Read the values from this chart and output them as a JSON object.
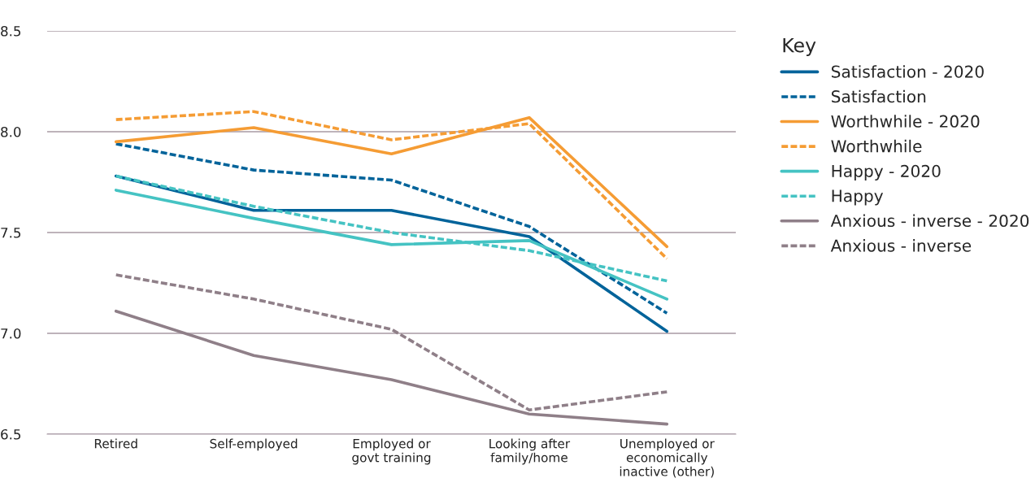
{
  "chart_data": {
    "type": "line",
    "legend_title": "Key",
    "legend": "right",
    "grid": "y",
    "categories": [
      "Retired",
      "Self-employed",
      "Employed or\ngovt training",
      "Looking after\nfamily/home",
      "Unemployed or\neconomically\ninactive (other)"
    ],
    "ylim": [
      6.5,
      8.5
    ],
    "yticks": [
      {
        "value": 6.5,
        "label": "6.5"
      },
      {
        "value": 7.0,
        "label": "7.0"
      },
      {
        "value": 7.5,
        "label": "7.5"
      },
      {
        "value": 8.0,
        "label": "8.0"
      },
      {
        "value": 8.5,
        "label": "8.5"
      }
    ],
    "series": [
      {
        "name": "Satisfaction - 2020",
        "color": "#00639a",
        "line_style": "solid",
        "values": [
          7.78,
          7.61,
          7.61,
          7.48,
          7.01
        ]
      },
      {
        "name": "Satisfaction",
        "color": "#00639a",
        "line_style": "dashed",
        "values": [
          7.94,
          7.81,
          7.76,
          7.53,
          7.1
        ]
      },
      {
        "name": "Worthwhile - 2020",
        "color": "#f59c34",
        "line_style": "solid",
        "values": [
          7.95,
          8.02,
          7.89,
          8.07,
          7.43
        ]
      },
      {
        "name": "Worthwhile",
        "color": "#f59c34",
        "line_style": "dashed",
        "values": [
          8.06,
          8.1,
          7.96,
          8.04,
          7.37
        ]
      },
      {
        "name": "Happy - 2020",
        "color": "#45c3c3",
        "line_style": "solid",
        "values": [
          7.71,
          7.57,
          7.44,
          7.46,
          7.17
        ]
      },
      {
        "name": "Happy",
        "color": "#45c3c3",
        "line_style": "dashed",
        "values": [
          7.78,
          7.63,
          7.5,
          7.41,
          7.26
        ]
      },
      {
        "name": "Anxious - inverse - 2020",
        "color": "#8f7f88",
        "line_style": "solid",
        "values": [
          7.11,
          6.89,
          6.77,
          6.6,
          6.55
        ]
      },
      {
        "name": "Anxious - inverse",
        "color": "#8f7f88",
        "line_style": "dashed",
        "values": [
          7.29,
          7.17,
          7.02,
          6.62,
          6.71
        ]
      }
    ]
  }
}
